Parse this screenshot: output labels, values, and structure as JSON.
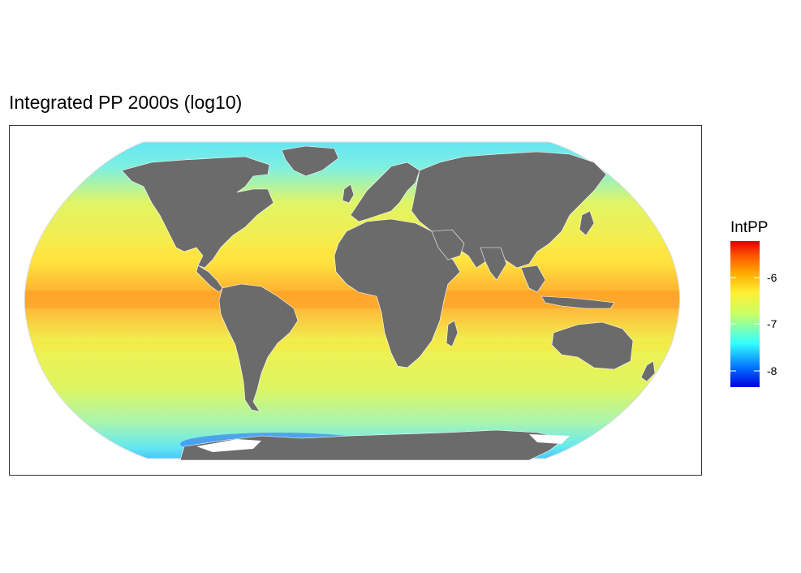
{
  "title": "Integrated PP 2000s (log10)",
  "legend": {
    "title": "IntPP",
    "ticks": [
      "-6",
      "-7",
      "-8"
    ],
    "tick_values": [
      -6,
      -7,
      -8
    ],
    "range": [
      -8.3,
      -5.3
    ],
    "colors": [
      "#0000dd",
      "#0066ff",
      "#33ffff",
      "#c8ff66",
      "#ffee33",
      "#ffaa00",
      "#ff5500",
      "#dd0000"
    ]
  },
  "map": {
    "projection": "Robinson",
    "land_color": "#6b6b6b",
    "ocean_colors": {
      "high_lat": "#55ddff",
      "mid": "#e8f566",
      "equator": "#ffaa33"
    }
  }
}
